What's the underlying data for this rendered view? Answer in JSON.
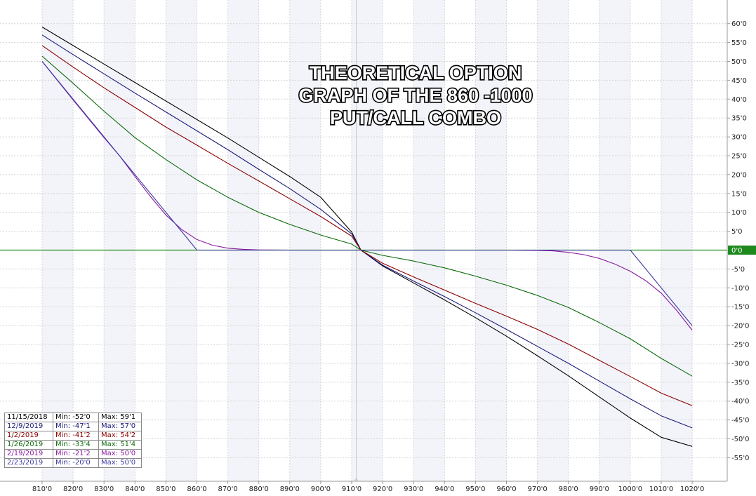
{
  "chart_data": {
    "type": "line",
    "title_lines": [
      "THEORETICAL OPTION",
      "GRAPH OF THE 860 -1000",
      "PUT/CALL COMBO"
    ],
    "x_ticks": [
      "810'0",
      "820'0",
      "830'0",
      "840'0",
      "850'0",
      "860'0",
      "870'0",
      "880'0",
      "890'0",
      "900'0",
      "910'0",
      "920'0",
      "930'0",
      "940'0",
      "950'0",
      "960'0",
      "970'0",
      "980'0",
      "990'0",
      "1000'0",
      "1010'0",
      "1020'0"
    ],
    "y_ticks": [
      "60'0",
      "55'0",
      "50'0",
      "45'0",
      "40'0",
      "35'0",
      "30'0",
      "25'0",
      "20'0",
      "15'0",
      "10'0",
      "5'0",
      "0'0",
      "-5'0",
      "-10'0",
      "-15'0",
      "-20'0",
      "-25'0",
      "-30'0",
      "-35'0",
      "-40'0",
      "-45'0",
      "-50'0",
      "-55'0"
    ],
    "xlim": [
      804,
      1036
    ],
    "ylim": [
      -60,
      64
    ],
    "grid": true,
    "zero_label": "0'0",
    "zero_color": "#1e8a1e",
    "series": [
      {
        "date": "11/15/2018",
        "min": "Min: -52'0",
        "max": "Max: 59'1",
        "color": "#000000",
        "x": [
          810,
          820,
          830,
          840,
          850,
          860,
          870,
          880,
          890,
          900,
          910,
          913,
          920,
          930,
          940,
          950,
          960,
          970,
          980,
          990,
          1000,
          1010,
          1020
        ],
        "y": [
          59.1,
          54.2,
          49.3,
          44.4,
          39.5,
          34.6,
          29.7,
          24.6,
          19.5,
          14.0,
          4.8,
          0,
          -4.2,
          -8.7,
          -13.2,
          -17.9,
          -22.8,
          -28.0,
          -33.3,
          -38.9,
          -44.5,
          -49.6,
          -52.0
        ]
      },
      {
        "date": "12/9/2019",
        "min": "Min: -47'1",
        "max": "Max: 57'0",
        "color": "#1a1a7a",
        "x": [
          810,
          820,
          830,
          840,
          850,
          860,
          870,
          880,
          890,
          900,
          910,
          913,
          920,
          930,
          940,
          950,
          960,
          970,
          980,
          990,
          1000,
          1010,
          1020
        ],
        "y": [
          57.0,
          51.8,
          46.7,
          41.6,
          36.6,
          31.6,
          26.6,
          21.4,
          16.3,
          10.8,
          4.3,
          0,
          -4.0,
          -8.2,
          -12.3,
          -16.6,
          -21.0,
          -25.5,
          -30.0,
          -34.7,
          -39.4,
          -43.9,
          -47.1
        ]
      },
      {
        "date": "1/2/2019",
        "min": "Min: -41'2",
        "max": "Max: 54'2",
        "color": "#8b0000",
        "x": [
          810,
          820,
          830,
          840,
          850,
          860,
          870,
          880,
          890,
          900,
          910,
          913,
          920,
          930,
          940,
          950,
          960,
          970,
          980,
          990,
          1000,
          1010,
          1020
        ],
        "y": [
          54.2,
          48.5,
          43.0,
          37.8,
          32.6,
          27.8,
          23.0,
          18.3,
          13.6,
          8.9,
          3.7,
          0,
          -3.5,
          -7.1,
          -10.6,
          -14.1,
          -17.5,
          -21.0,
          -24.9,
          -29.2,
          -33.5,
          -37.9,
          -41.2
        ]
      },
      {
        "date": "1/26/2019",
        "min": "Min: -33'4",
        "max": "Max: 51'4",
        "color": "#0a6a0a",
        "x": [
          810,
          820,
          830,
          840,
          850,
          860,
          870,
          880,
          890,
          900,
          910,
          913,
          920,
          930,
          940,
          950,
          960,
          970,
          980,
          990,
          1000,
          1010,
          1020
        ],
        "y": [
          51.4,
          44.2,
          36.8,
          29.8,
          24.0,
          18.6,
          14.0,
          10.0,
          6.8,
          4.0,
          1.6,
          0,
          -1.4,
          -2.9,
          -4.7,
          -6.9,
          -9.3,
          -12.0,
          -15.2,
          -19.2,
          -23.5,
          -28.7,
          -33.4
        ]
      },
      {
        "date": "2/19/2019",
        "min": "Min: -21'2",
        "max": "Max: 50'0",
        "color": "#8a1aa0",
        "x": [
          810,
          820,
          830,
          835,
          840,
          845,
          850,
          855,
          860,
          865,
          870,
          875,
          880,
          890,
          900,
          910,
          913,
          920,
          940,
          960,
          970,
          975,
          980,
          985,
          990,
          995,
          1000,
          1005,
          1010,
          1015,
          1020
        ],
        "y": [
          50.0,
          39.8,
          29.8,
          25.0,
          19.5,
          14.2,
          9.3,
          5.5,
          2.8,
          1.3,
          0.5,
          0.2,
          0.05,
          0,
          0,
          0,
          0,
          0,
          0,
          0,
          -0.1,
          -0.2,
          -0.6,
          -1.2,
          -2.2,
          -3.7,
          -5.6,
          -8.1,
          -11.4,
          -16.0,
          -21.2
        ]
      },
      {
        "date": "2/23/2019",
        "min": "Min: -20'0",
        "max": "Max: 50'0",
        "color": "#3a3aa0",
        "x": [
          810,
          860,
          913,
          1000,
          1020
        ],
        "y": [
          50.0,
          0,
          0,
          0,
          -20.0
        ]
      }
    ]
  }
}
